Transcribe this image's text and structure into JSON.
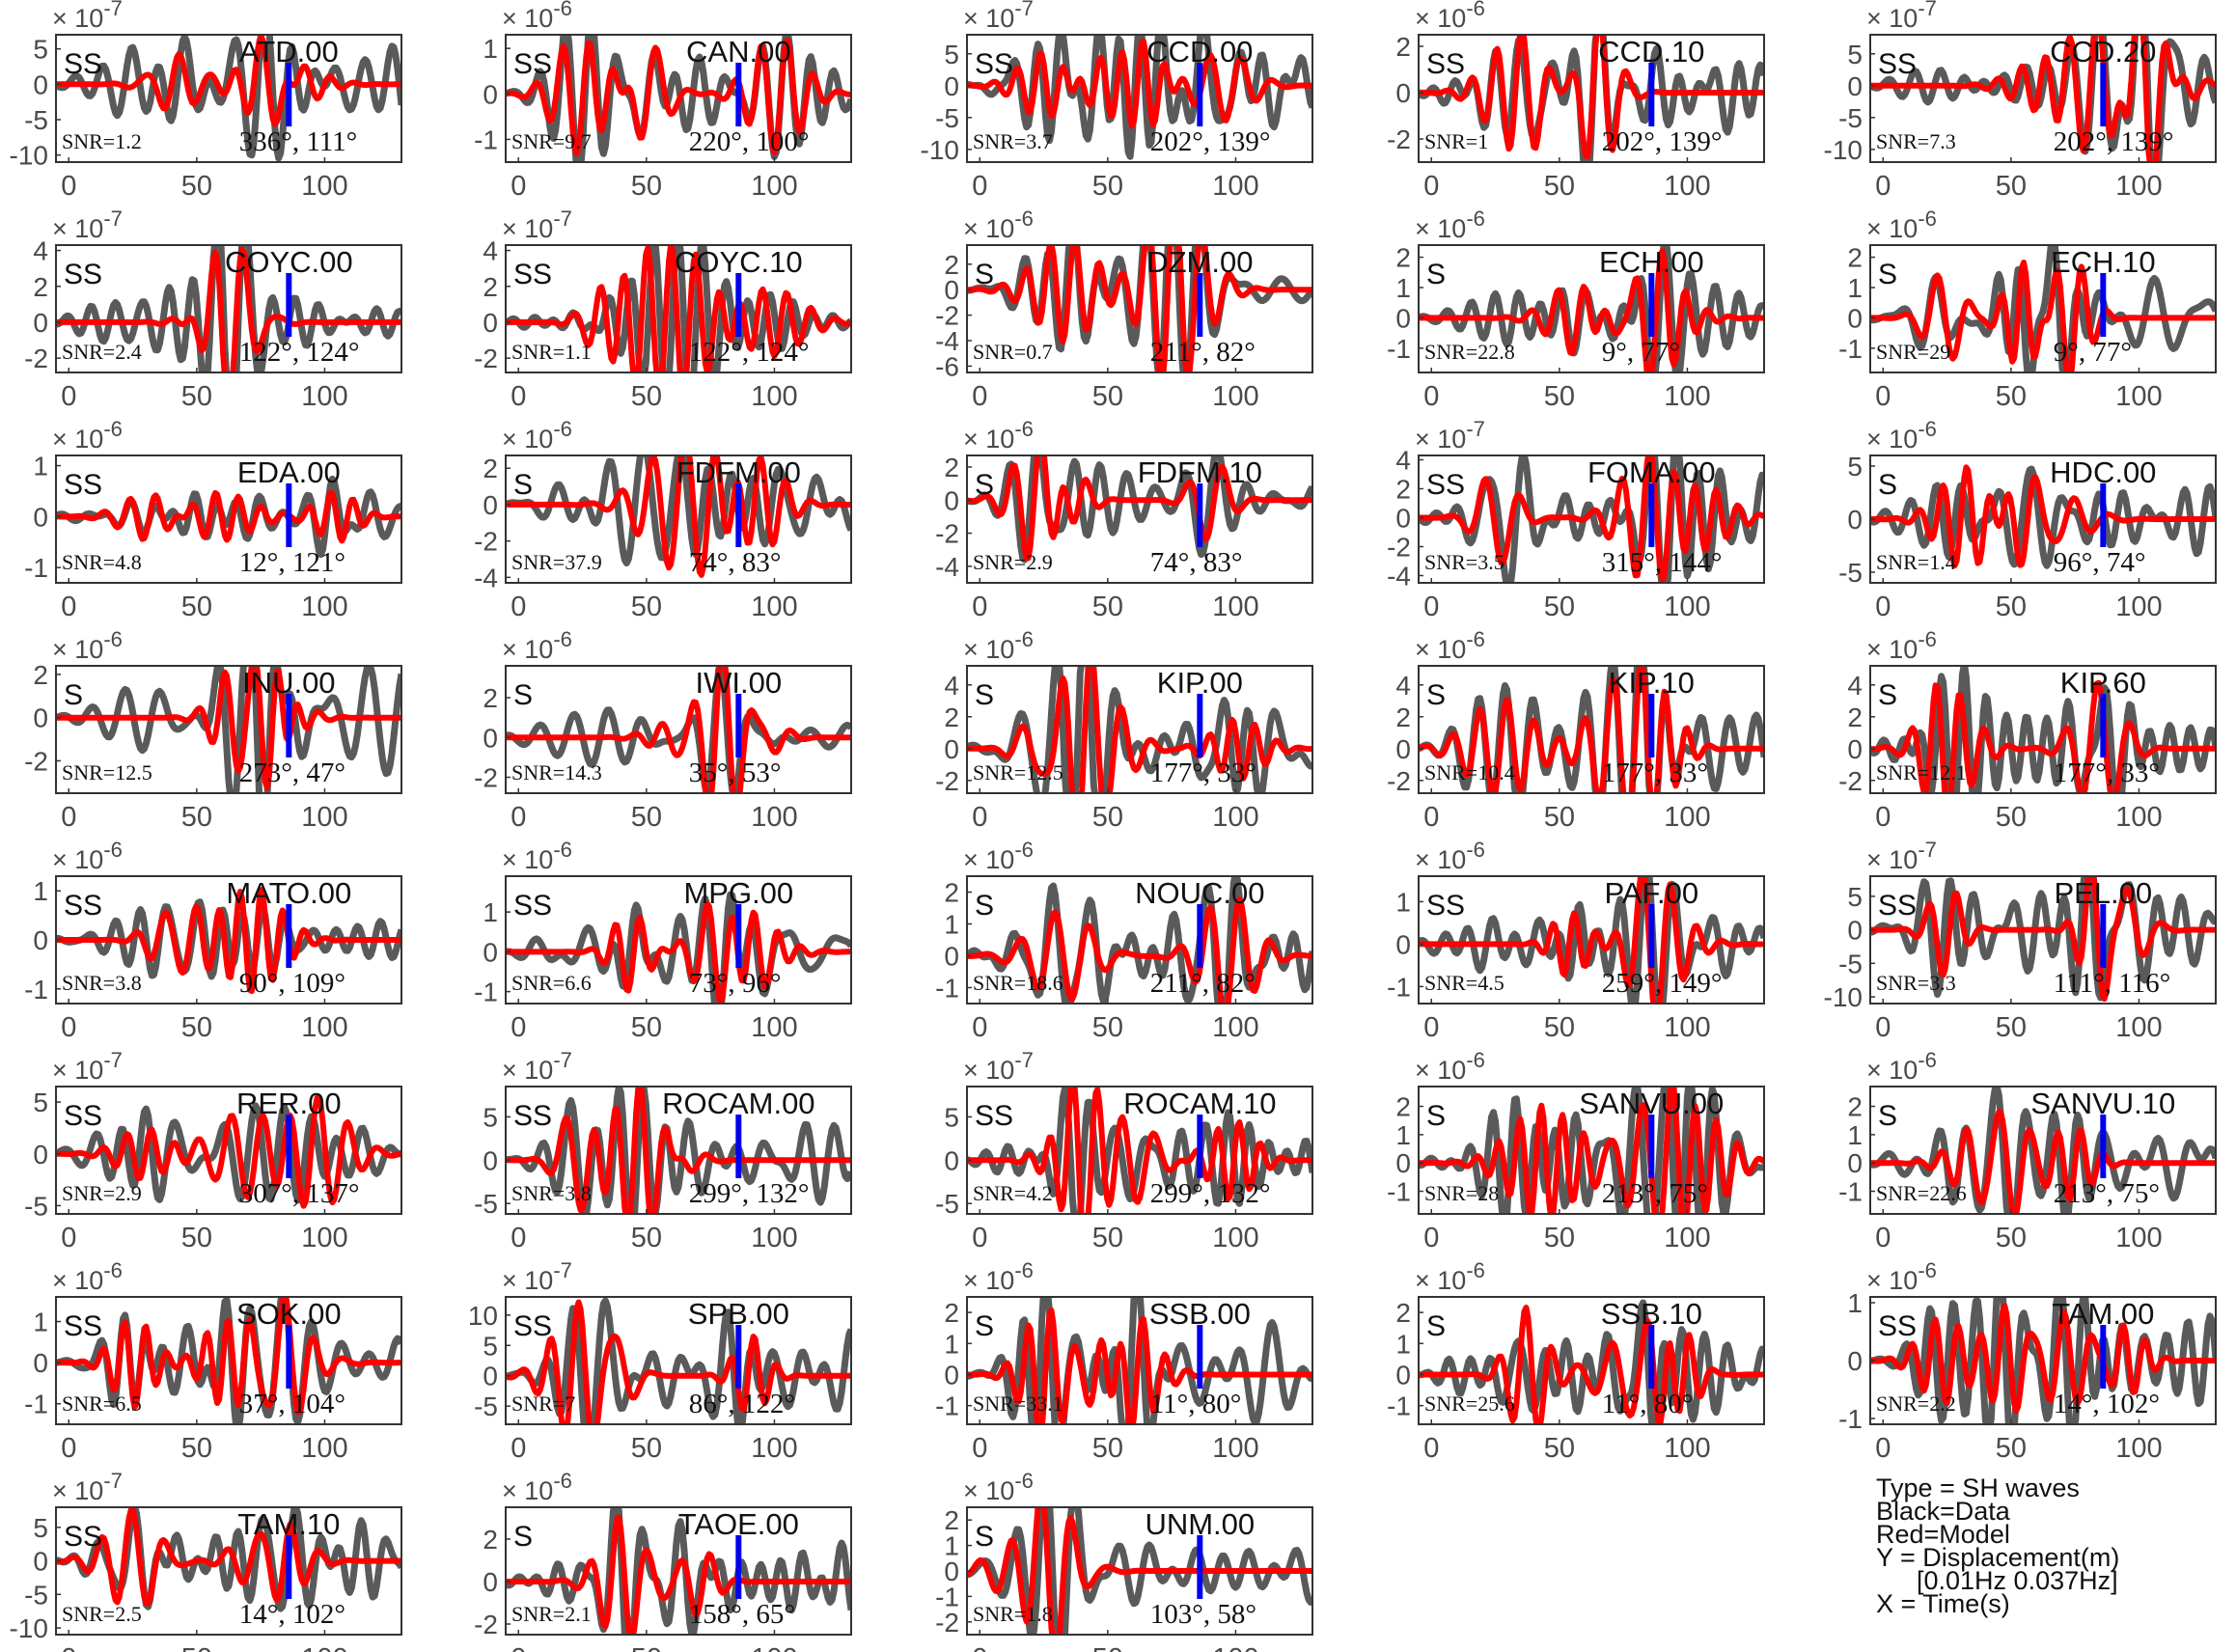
{
  "colors": {
    "data": "#5a5a5a",
    "model": "#ff0000",
    "marker": "#0000ee",
    "axis": "#333333",
    "tick_text": "#4a4a4a"
  },
  "legend": {
    "line1": "Type = SH waves",
    "line2": "Black=Data",
    "line3": "Red=Model",
    "line4": "Y = Displacement(m)",
    "line5": "[0.01Hz 0.037Hz]",
    "line6": "X = Time(s)"
  },
  "chart_data": {
    "type": "line",
    "xlabel": "",
    "ylabel": "",
    "xlim": [
      -5,
      130
    ],
    "xticks": [
      0,
      50,
      100
    ],
    "grid": false,
    "series_names": [
      "Data",
      "Model"
    ],
    "panels": [
      {
        "station": "ATD.00",
        "phase": "SS",
        "snr": "SNR=1.2",
        "angles": "336°, 111°",
        "exp": "-7",
        "ylim": [
          -11,
          7
        ],
        "yticks": [
          -10,
          -5,
          0,
          5
        ],
        "marker_t": 86
      },
      {
        "station": "CAN.00",
        "phase": "SS",
        "snr": "SNR=9.7",
        "angles": "220°, 100°",
        "exp": "-6",
        "ylim": [
          -1.5,
          1.3
        ],
        "yticks": [
          -1,
          0,
          1
        ],
        "marker_t": 86
      },
      {
        "station": "CCD.00",
        "phase": "SS",
        "snr": "SNR=3.7",
        "angles": "202°, 139°",
        "exp": "-7",
        "ylim": [
          -12,
          8
        ],
        "yticks": [
          -10,
          -5,
          0,
          5
        ],
        "marker_t": 86
      },
      {
        "station": "CCD.10",
        "phase": "SS",
        "snr": "SNR=1",
        "angles": "202°, 139°",
        "exp": "-6",
        "ylim": [
          -3,
          2.5
        ],
        "yticks": [
          -2,
          0,
          2
        ],
        "marker_t": 86
      },
      {
        "station": "CCD.20",
        "phase": "SS",
        "snr": "SNR=7.3",
        "angles": "202°, 139°",
        "exp": "-7",
        "ylim": [
          -12,
          8
        ],
        "yticks": [
          -10,
          -5,
          0,
          5
        ],
        "marker_t": 86
      },
      {
        "station": "COYC.00",
        "phase": "SS",
        "snr": "SNR=2.4",
        "angles": "122°, 124°",
        "exp": "-7",
        "ylim": [
          -2.8,
          4.3
        ],
        "yticks": [
          -2,
          0,
          2,
          4
        ],
        "marker_t": 86
      },
      {
        "station": "COYC.10",
        "phase": "SS",
        "snr": "SNR=1.1",
        "angles": "122°, 124°",
        "exp": "-7",
        "ylim": [
          -2.8,
          4.3
        ],
        "yticks": [
          -2,
          0,
          2,
          4
        ],
        "marker_t": 86
      },
      {
        "station": "DZM.00",
        "phase": "S",
        "snr": "SNR=0.7",
        "angles": "211°, 82°",
        "exp": "-6",
        "ylim": [
          -6.5,
          3.5
        ],
        "yticks": [
          -6,
          -4,
          -2,
          0,
          2
        ],
        "marker_t": 86
      },
      {
        "station": "ECH.00",
        "phase": "S",
        "snr": "SNR=22.8",
        "angles": "9°, 77°",
        "exp": "-6",
        "ylim": [
          -1.8,
          2.4
        ],
        "yticks": [
          -1,
          0,
          1,
          2
        ],
        "marker_t": 86
      },
      {
        "station": "ECH.10",
        "phase": "S",
        "snr": "SNR=29",
        "angles": "9°, 77°",
        "exp": "-6",
        "ylim": [
          -1.8,
          2.4
        ],
        "yticks": [
          -1,
          0,
          1,
          2
        ],
        "marker_t": 86
      },
      {
        "station": "EDA.00",
        "phase": "SS",
        "snr": "SNR=4.8",
        "angles": "12°, 121°",
        "exp": "-6",
        "ylim": [
          -1.3,
          1.2
        ],
        "yticks": [
          -1,
          0,
          1
        ],
        "marker_t": 86
      },
      {
        "station": "FDFM.00",
        "phase": "S",
        "snr": "SNR=37.9",
        "angles": "74°, 83°",
        "exp": "-6",
        "ylim": [
          -4.3,
          2.7
        ],
        "yticks": [
          -4,
          -2,
          0,
          2
        ],
        "marker_t": 86
      },
      {
        "station": "FDFM.10",
        "phase": "S",
        "snr": "SNR=2.9",
        "angles": "74°, 83°",
        "exp": "-6",
        "ylim": [
          -5,
          2.7
        ],
        "yticks": [
          -4,
          -2,
          0,
          2
        ],
        "marker_t": 86
      },
      {
        "station": "FOMA.00",
        "phase": "SS",
        "snr": "SNR=3.5",
        "angles": "315°, 144°",
        "exp": "-7",
        "ylim": [
          -4.5,
          4.3
        ],
        "yticks": [
          -4,
          -2,
          0,
          2,
          4
        ],
        "marker_t": 86
      },
      {
        "station": "HDC.00",
        "phase": "S",
        "snr": "SNR=1.4",
        "angles": "96°, 74°",
        "exp": "-6",
        "ylim": [
          -6,
          6
        ],
        "yticks": [
          -5,
          0,
          5
        ],
        "marker_t": 86
      },
      {
        "station": "INU.00",
        "phase": "S",
        "snr": "SNR=12.5",
        "angles": "273°, 47°",
        "exp": "-6",
        "ylim": [
          -3.5,
          2.4
        ],
        "yticks": [
          -2,
          0,
          2
        ],
        "marker_t": 86
      },
      {
        "station": "IWI.00",
        "phase": "S",
        "snr": "SNR=14.3",
        "angles": "35°, 53°",
        "exp": "-6",
        "ylim": [
          -2.8,
          3.6
        ],
        "yticks": [
          -2,
          0,
          2
        ],
        "marker_t": 86
      },
      {
        "station": "KIP.00",
        "phase": "S",
        "snr": "SNR=12.5",
        "angles": "177°, 33°",
        "exp": "-6",
        "ylim": [
          -2.8,
          5.2
        ],
        "yticks": [
          -2,
          0,
          2,
          4
        ],
        "marker_t": 86
      },
      {
        "station": "KIP.10",
        "phase": "S",
        "snr": "SNR=10.4",
        "angles": "177°, 33°",
        "exp": "-6",
        "ylim": [
          -2.8,
          5.2
        ],
        "yticks": [
          -2,
          0,
          2,
          4
        ],
        "marker_t": 86
      },
      {
        "station": "KIP.60",
        "phase": "S",
        "snr": "SNR=12.1",
        "angles": "177°, 33°",
        "exp": "-6",
        "ylim": [
          -2.8,
          5.2
        ],
        "yticks": [
          -2,
          0,
          2,
          4
        ],
        "marker_t": 86
      },
      {
        "station": "MATO.00",
        "phase": "SS",
        "snr": "SNR=3.8",
        "angles": "90°, 109°",
        "exp": "-6",
        "ylim": [
          -1.3,
          1.3
        ],
        "yticks": [
          -1,
          0,
          1
        ],
        "marker_t": 86
      },
      {
        "station": "MPG.00",
        "phase": "SS",
        "snr": "SNR=6.6",
        "angles": "73°, 96°",
        "exp": "-6",
        "ylim": [
          -1.3,
          1.9
        ],
        "yticks": [
          -1,
          0,
          1
        ],
        "marker_t": 86
      },
      {
        "station": "NOUC.00",
        "phase": "S",
        "snr": "SNR=18.6",
        "angles": "211°, 82°",
        "exp": "-6",
        "ylim": [
          -1.5,
          2.5
        ],
        "yticks": [
          -1,
          0,
          1,
          2
        ],
        "marker_t": 86
      },
      {
        "station": "PAF.00",
        "phase": "SS",
        "snr": "SNR=4.5",
        "angles": "259°, 149°",
        "exp": "-6",
        "ylim": [
          -1.4,
          1.6
        ],
        "yticks": [
          -1,
          0,
          1
        ],
        "marker_t": 86
      },
      {
        "station": "PEL.00",
        "phase": "SS",
        "snr": "SNR=3.3",
        "angles": "111°, 116°",
        "exp": "-7",
        "ylim": [
          -11,
          8
        ],
        "yticks": [
          -10,
          -5,
          0,
          5
        ],
        "marker_t": 86
      },
      {
        "station": "RER.00",
        "phase": "SS",
        "snr": "SNR=2.9",
        "angles": "307°, 137°",
        "exp": "-7",
        "ylim": [
          -5.8,
          6.5
        ],
        "yticks": [
          -5,
          0,
          5
        ],
        "marker_t": 86
      },
      {
        "station": "ROCAM.00",
        "phase": "SS",
        "snr": "SNR=3.8",
        "angles": "299°, 132°",
        "exp": "-7",
        "ylim": [
          -6.2,
          8.5
        ],
        "yticks": [
          -5,
          0,
          5
        ],
        "marker_t": 86
      },
      {
        "station": "ROCAM.10",
        "phase": "SS",
        "snr": "SNR=4.2",
        "angles": "299°, 132°",
        "exp": "-7",
        "ylim": [
          -6.2,
          8.5
        ],
        "yticks": [
          -5,
          0,
          5
        ],
        "marker_t": 86
      },
      {
        "station": "SANVU.00",
        "phase": "S",
        "snr": "SNR=28",
        "angles": "213°, 75°",
        "exp": "-6",
        "ylim": [
          -1.8,
          2.7
        ],
        "yticks": [
          -1,
          0,
          1,
          2
        ],
        "marker_t": 86
      },
      {
        "station": "SANVU.10",
        "phase": "S",
        "snr": "SNR=22.6",
        "angles": "213°, 75°",
        "exp": "-6",
        "ylim": [
          -1.8,
          2.7
        ],
        "yticks": [
          -1,
          0,
          1,
          2
        ],
        "marker_t": 86
      },
      {
        "station": "SOK.00",
        "phase": "SS",
        "snr": "SNR=6.5",
        "angles": "37°, 104°",
        "exp": "-6",
        "ylim": [
          -1.5,
          1.6
        ],
        "yticks": [
          -1,
          0,
          1
        ],
        "marker_t": 86
      },
      {
        "station": "SPB.00",
        "phase": "SS",
        "snr": "SNR=7",
        "angles": "86°, 122°",
        "exp": "-7",
        "ylim": [
          -8,
          13
        ],
        "yticks": [
          -5,
          0,
          5,
          10
        ],
        "marker_t": 86
      },
      {
        "station": "SSB.00",
        "phase": "S",
        "snr": "SNR=33.1",
        "angles": "11°, 80°",
        "exp": "-6",
        "ylim": [
          -1.6,
          2.5
        ],
        "yticks": [
          -1,
          0,
          1,
          2
        ],
        "marker_t": 86
      },
      {
        "station": "SSB.10",
        "phase": "S",
        "snr": "SNR=25.6",
        "angles": "11°, 80°",
        "exp": "-6",
        "ylim": [
          -1.6,
          2.5
        ],
        "yticks": [
          -1,
          0,
          1,
          2
        ],
        "marker_t": 86
      },
      {
        "station": "TAM.00",
        "phase": "SS",
        "snr": "SNR=2.2",
        "angles": "14°, 102°",
        "exp": "-6",
        "ylim": [
          -1.1,
          1.1
        ],
        "yticks": [
          -1,
          0,
          1
        ],
        "marker_t": 86
      },
      {
        "station": "TAM.10",
        "phase": "SS",
        "snr": "SNR=2.5",
        "angles": "14°, 102°",
        "exp": "-7",
        "ylim": [
          -11,
          8
        ],
        "yticks": [
          -10,
          -5,
          0,
          5
        ],
        "marker_t": 86
      },
      {
        "station": "TAOE.00",
        "phase": "S",
        "snr": "SNR=2.1",
        "angles": "158°, 65°",
        "exp": "-6",
        "ylim": [
          -2.5,
          3.5
        ],
        "yticks": [
          -2,
          0,
          2
        ],
        "marker_t": 86
      },
      {
        "station": "UNM.00",
        "phase": "S",
        "snr": "SNR=1.8",
        "angles": "103°, 58°",
        "exp": "-6",
        "ylim": [
          -2.5,
          2.5
        ],
        "yticks": [
          -2,
          -1,
          0,
          1,
          2
        ],
        "marker_t": 86
      }
    ]
  }
}
